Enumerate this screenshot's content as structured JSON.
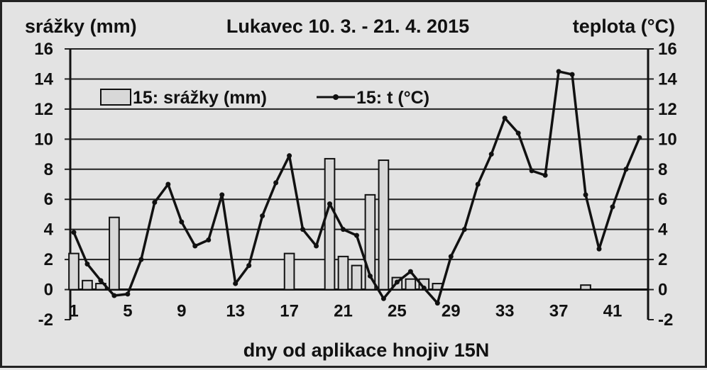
{
  "chart_data": {
    "type": "bar+line",
    "title": "Lukavec 10. 3. - 21. 4. 2015",
    "ylabel_left": "srážky (mm)",
    "ylabel_right": "teplota (°C)",
    "xlabel": "dny od aplikace hnojiv 15N",
    "x": [
      1,
      2,
      3,
      4,
      5,
      6,
      7,
      8,
      9,
      10,
      11,
      12,
      13,
      14,
      15,
      16,
      17,
      18,
      19,
      20,
      21,
      22,
      23,
      24,
      25,
      26,
      27,
      28,
      29,
      30,
      31,
      32,
      33,
      34,
      35,
      36,
      37,
      38,
      39,
      40,
      41,
      42,
      43
    ],
    "x_tick_labels": [
      "1",
      "5",
      "9",
      "13",
      "17",
      "21",
      "25",
      "29",
      "33",
      "37",
      "41"
    ],
    "x_tick_values": [
      1,
      5,
      9,
      13,
      17,
      21,
      25,
      29,
      33,
      37,
      41
    ],
    "ylim": [
      -2,
      16
    ],
    "y_ticks": [
      "-2",
      "0",
      "2",
      "4",
      "6",
      "8",
      "10",
      "12",
      "14",
      "16"
    ],
    "grid": true,
    "legend_position": "top-left",
    "series": [
      {
        "name": "15: srážky (mm)",
        "type": "bar",
        "color": "#d8d8d8",
        "values": [
          2.4,
          0.6,
          0.4,
          4.8,
          0,
          0,
          0,
          0,
          0,
          0,
          0,
          0,
          0,
          0,
          0,
          0,
          2.4,
          0,
          0,
          8.7,
          2.2,
          1.6,
          6.3,
          8.6,
          0.8,
          0.7,
          0.7,
          0.4,
          0,
          0,
          0,
          0,
          0,
          0,
          0,
          0,
          0,
          0,
          0.3,
          0,
          0,
          0,
          0
        ]
      },
      {
        "name": "15: t (°C)",
        "type": "line",
        "color": "#111111",
        "values": [
          3.8,
          1.7,
          0.6,
          -0.4,
          -0.3,
          2.0,
          5.8,
          7.0,
          4.5,
          2.9,
          3.3,
          6.3,
          0.4,
          1.6,
          4.9,
          7.1,
          8.9,
          4.0,
          2.9,
          5.7,
          4.0,
          3.6,
          0.9,
          -0.6,
          0.5,
          1.2,
          0.1,
          -0.9,
          2.2,
          4.0,
          7.0,
          9.0,
          11.4,
          10.4,
          7.9,
          7.6,
          14.5,
          14.3,
          6.3,
          2.7,
          5.5,
          8.0,
          10.1
        ]
      }
    ]
  }
}
